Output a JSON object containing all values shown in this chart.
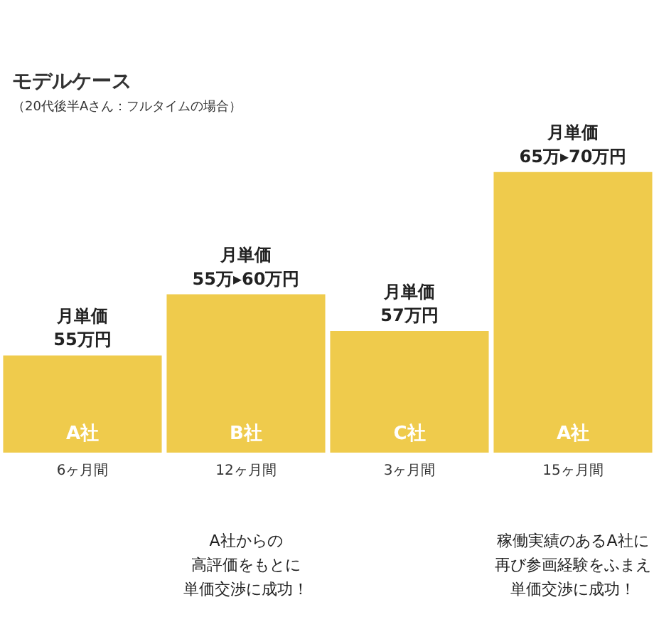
{
  "chart_data": {
    "type": "bar",
    "title": "モデルケース",
    "subtitle": "（20代後半Aさん：フルタイムの場合）",
    "categories": [
      "A社",
      "B社",
      "C社",
      "A社"
    ],
    "values": [
      55,
      60,
      57,
      70
    ],
    "value_labels": [
      "月単価\n55万円",
      "月単価\n55万▸60万円",
      "月単価\n57万円",
      "月単価\n65万▸70万円"
    ],
    "color": "#efcb4c",
    "ylim": [
      47,
      84
    ],
    "tick_labels": false,
    "grid": false,
    "annotations": [
      "6ヶ月間",
      "12ヶ月間",
      "3ヶ月間",
      "15ヶ月間",
      "A社からの",
      "高評価をもとに",
      "単価交渉に成功！",
      "稼働実績のあるA社に",
      "再び参画経験をふまえ",
      "単価交渉に成功！"
    ]
  }
}
